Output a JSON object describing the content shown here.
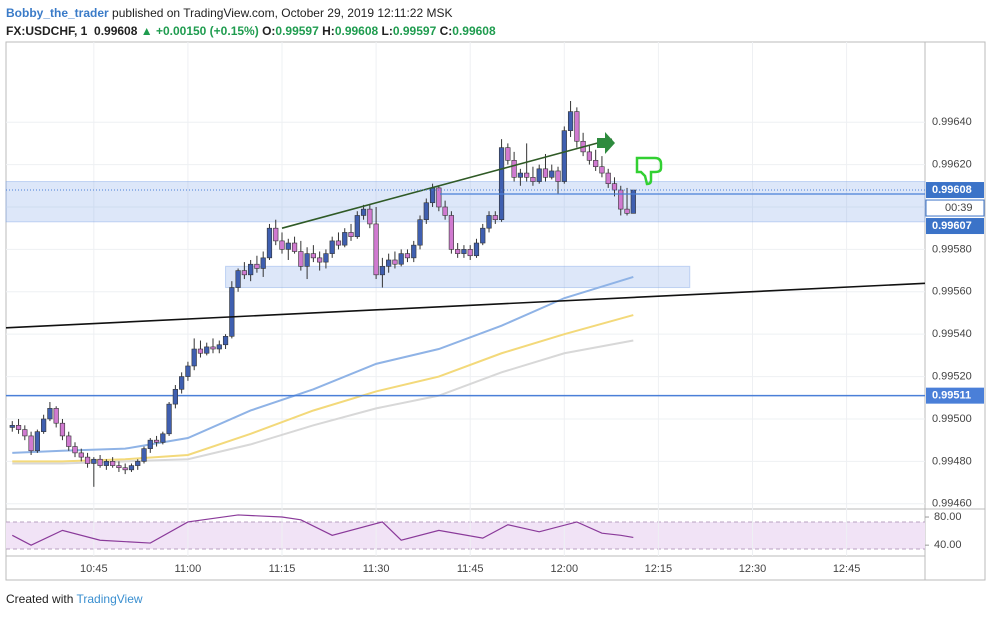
{
  "header": {
    "author": "Bobby_the_trader",
    "published": "published on TradingView.com, October 29, 2019 12:11:22 MSK",
    "symbol": "FX:USDCHF, 1",
    "price": "0.99608",
    "change": "▲ +0.00150 (+0.15%)",
    "o_label": "O:",
    "o": "0.99597",
    "h_label": "H:",
    "h": "0.99608",
    "l_label": "L:",
    "l": "0.99597",
    "c_label": "C:",
    "c": "0.99608"
  },
  "footer": {
    "created": "Created with",
    "brand": "TradingView"
  },
  "chart_data": {
    "type": "candlestick",
    "up_color": "#3f5fb0",
    "down_color": "#d07ad0",
    "x": [
      32,
      33,
      34,
      35,
      36,
      37,
      38,
      39,
      40,
      41,
      42,
      43,
      44,
      45,
      46,
      47,
      48,
      49,
      50,
      51,
      52,
      53,
      54,
      55,
      56,
      57,
      58,
      59,
      60,
      61,
      62,
      63,
      64,
      65,
      66,
      67,
      68,
      69,
      70,
      71,
      72,
      73,
      74,
      75,
      76,
      77,
      78,
      79,
      80,
      81,
      82,
      83,
      84,
      85,
      86,
      87,
      88,
      89,
      90,
      91,
      92,
      93,
      94,
      95,
      96,
      97,
      98,
      99,
      100,
      101,
      102,
      103,
      104,
      105,
      106,
      107,
      108,
      109,
      110,
      111,
      112,
      113,
      114,
      115,
      116,
      117,
      118,
      119,
      120,
      121,
      122,
      123,
      124,
      125,
      126,
      127,
      128,
      129,
      130,
      131
    ],
    "open": [
      0.99496,
      0.99497,
      0.99495,
      0.99492,
      0.99485,
      0.99494,
      0.995,
      0.99505,
      0.99498,
      0.99492,
      0.99487,
      0.99484,
      0.99482,
      0.99479,
      0.99481,
      0.99478,
      0.9948,
      0.99478,
      0.99477,
      0.99476,
      0.99478,
      0.9948,
      0.99486,
      0.9949,
      0.99489,
      0.99493,
      0.99507,
      0.99514,
      0.9952,
      0.99525,
      0.99533,
      0.99531,
      0.99534,
      0.99533,
      0.99535,
      0.99539,
      0.99562,
      0.9957,
      0.99568,
      0.99573,
      0.99571,
      0.99576,
      0.9959,
      0.99584,
      0.9958,
      0.99583,
      0.99579,
      0.99572,
      0.99578,
      0.99576,
      0.99574,
      0.99578,
      0.99584,
      0.99582,
      0.99588,
      0.99586,
      0.99596,
      0.99599,
      0.99592,
      0.99568,
      0.99572,
      0.99575,
      0.99573,
      0.99578,
      0.99576,
      0.99582,
      0.99594,
      0.99602,
      0.99609,
      0.996,
      0.99596,
      0.9958,
      0.99578,
      0.9958,
      0.99577,
      0.99583,
      0.9959,
      0.99596,
      0.99594,
      0.99628,
      0.99622,
      0.99614,
      0.99616,
      0.99614,
      0.99612,
      0.99618,
      0.99614,
      0.99617,
      0.99612,
      0.99636,
      0.99645,
      0.99631,
      0.99626,
      0.99622,
      0.99619,
      0.99616,
      0.99611,
      0.99608,
      0.99599,
      0.99597
    ],
    "high": [
      0.99499,
      0.995,
      0.99497,
      0.99494,
      0.99495,
      0.99502,
      0.99508,
      0.99506,
      0.995,
      0.99494,
      0.99489,
      0.99486,
      0.99484,
      0.99482,
      0.99483,
      0.99481,
      0.99482,
      0.9948,
      0.99479,
      0.99479,
      0.99481,
      0.99487,
      0.99491,
      0.99492,
      0.99494,
      0.99508,
      0.99516,
      0.99522,
      0.99527,
      0.99538,
      0.99537,
      0.99536,
      0.99538,
      0.99537,
      0.9954,
      0.99565,
      0.99571,
      0.99574,
      0.99575,
      0.99577,
      0.99579,
      0.99592,
      0.99594,
      0.99588,
      0.99585,
      0.99586,
      0.99584,
      0.99581,
      0.99582,
      0.99579,
      0.9958,
      0.99586,
      0.99588,
      0.9959,
      0.99592,
      0.99598,
      0.99601,
      0.99601,
      0.996,
      0.99576,
      0.99578,
      0.99579,
      0.9958,
      0.9958,
      0.99584,
      0.99596,
      0.99604,
      0.99611,
      0.9961,
      0.99603,
      0.99598,
      0.99583,
      0.99582,
      0.99582,
      0.99585,
      0.99592,
      0.99598,
      0.99598,
      0.99632,
      0.9963,
      0.99626,
      0.99618,
      0.9963,
      0.99619,
      0.9962,
      0.99625,
      0.9962,
      0.99619,
      0.99638,
      0.9965,
      0.99647,
      0.99635,
      0.99629,
      0.99627,
      0.99624,
      0.99618,
      0.99614,
      0.9961,
      0.99609,
      0.99608
    ],
    "low": [
      0.99494,
      0.99493,
      0.9949,
      0.99483,
      0.99484,
      0.99493,
      0.99499,
      0.99496,
      0.9949,
      0.99485,
      0.99482,
      0.9948,
      0.99477,
      0.99468,
      0.99477,
      0.99476,
      0.99477,
      0.99475,
      0.99474,
      0.99475,
      0.99476,
      0.99479,
      0.99484,
      0.99487,
      0.99488,
      0.99492,
      0.99505,
      0.99512,
      0.99518,
      0.99523,
      0.99529,
      0.9953,
      0.99531,
      0.99531,
      0.99533,
      0.99538,
      0.9956,
      0.99566,
      0.99565,
      0.99569,
      0.99567,
      0.99575,
      0.99582,
      0.99578,
      0.99575,
      0.99578,
      0.9957,
      0.99566,
      0.99574,
      0.9957,
      0.99571,
      0.99576,
      0.9958,
      0.99581,
      0.99584,
      0.99585,
      0.99594,
      0.9959,
      0.99566,
      0.99562,
      0.99569,
      0.99571,
      0.99572,
      0.99574,
      0.99574,
      0.9958,
      0.99592,
      0.996,
      0.99598,
      0.99594,
      0.99578,
      0.99576,
      0.99576,
      0.99575,
      0.99576,
      0.99582,
      0.99588,
      0.99592,
      0.99593,
      0.9962,
      0.99612,
      0.9961,
      0.99612,
      0.9961,
      0.99611,
      0.99612,
      0.99613,
      0.99606,
      0.99611,
      0.99633,
      0.99628,
      0.99624,
      0.9962,
      0.99617,
      0.99614,
      0.99609,
      0.99605,
      0.99596,
      0.99596,
      0.99597
    ],
    "close": [
      0.99497,
      0.99495,
      0.99492,
      0.99485,
      0.99494,
      0.995,
      0.99505,
      0.99498,
      0.99492,
      0.99487,
      0.99484,
      0.99482,
      0.99479,
      0.99481,
      0.99478,
      0.9948,
      0.99478,
      0.99477,
      0.99476,
      0.99478,
      0.9948,
      0.99486,
      0.9949,
      0.99489,
      0.99493,
      0.99507,
      0.99514,
      0.9952,
      0.99525,
      0.99533,
      0.99531,
      0.99534,
      0.99533,
      0.99535,
      0.99539,
      0.99562,
      0.9957,
      0.99568,
      0.99573,
      0.99571,
      0.99576,
      0.9959,
      0.99584,
      0.9958,
      0.99583,
      0.99579,
      0.99572,
      0.99578,
      0.99576,
      0.99574,
      0.99578,
      0.99584,
      0.99582,
      0.99588,
      0.99586,
      0.99596,
      0.99599,
      0.99592,
      0.99568,
      0.99572,
      0.99575,
      0.99573,
      0.99578,
      0.99576,
      0.99582,
      0.99594,
      0.99602,
      0.99609,
      0.996,
      0.99596,
      0.9958,
      0.99578,
      0.9958,
      0.99577,
      0.99583,
      0.9959,
      0.99596,
      0.99594,
      0.99628,
      0.99622,
      0.99614,
      0.99616,
      0.99614,
      0.99612,
      0.99618,
      0.99614,
      0.99617,
      0.99612,
      0.99636,
      0.99645,
      0.99631,
      0.99626,
      0.99622,
      0.99619,
      0.99616,
      0.99611,
      0.99608,
      0.99599,
      0.99597,
      0.99608
    ],
    "xlim": [
      31,
      177.5
    ],
    "xticks": [
      {
        "value": 45,
        "label": "10:45"
      },
      {
        "value": 60,
        "label": "11:00"
      },
      {
        "value": 75,
        "label": "11:15"
      },
      {
        "value": 90,
        "label": "11:30"
      },
      {
        "value": 105,
        "label": "11:45"
      },
      {
        "value": 120,
        "label": "12:00"
      },
      {
        "value": 135,
        "label": "12:15"
      },
      {
        "value": 150,
        "label": "12:30"
      },
      {
        "value": 165,
        "label": "12:45"
      }
    ],
    "ylim": [
      0.99458,
      0.99675
    ],
    "yticks": [
      {
        "value": 0.9946,
        "label": "0.99460"
      },
      {
        "value": 0.9948,
        "label": "0.99480"
      },
      {
        "value": 0.995,
        "label": "0.99500"
      },
      {
        "value": 0.9952,
        "label": "0.99520"
      },
      {
        "value": 0.9954,
        "label": "0.99540"
      },
      {
        "value": 0.9956,
        "label": "0.99560"
      },
      {
        "value": 0.9958,
        "label": "0.99580"
      },
      {
        "value": 0.996,
        "label": "0.99600"
      },
      {
        "value": 0.9962,
        "label": "0.99620"
      },
      {
        "value": 0.9964,
        "label": "0.99640"
      }
    ],
    "grid": true,
    "moving_averages": [
      {
        "color": "#8fb3e6",
        "x": [
          32,
          40,
          50,
          60,
          70,
          80,
          90,
          100,
          110,
          120,
          131
        ],
        "values": [
          0.99484,
          0.99485,
          0.99486,
          0.99491,
          0.99504,
          0.99514,
          0.99526,
          0.99533,
          0.99544,
          0.99557,
          0.99567
        ]
      },
      {
        "color": "#f3d97a",
        "x": [
          32,
          40,
          50,
          60,
          70,
          80,
          90,
          100,
          110,
          120,
          131
        ],
        "values": [
          0.9948,
          0.9948,
          0.99481,
          0.99483,
          0.99493,
          0.99504,
          0.99513,
          0.9952,
          0.99531,
          0.9954,
          0.99549
        ]
      },
      {
        "color": "#d8d8d8",
        "x": [
          32,
          40,
          50,
          60,
          70,
          80,
          90,
          100,
          110,
          120,
          131
        ],
        "values": [
          0.99479,
          0.99479,
          0.9948,
          0.99481,
          0.99488,
          0.99497,
          0.99505,
          0.99511,
          0.99522,
          0.99531,
          0.99537
        ]
      }
    ],
    "trendlines": [
      {
        "color": "#2f5a26",
        "x": [
          75,
          127.6
        ],
        "values": [
          0.9959,
          0.99632
        ]
      },
      {
        "color": "#111111",
        "x": [
          31,
          177.5
        ],
        "values": [
          0.99543,
          0.99564
        ]
      }
    ],
    "zones": [
      {
        "x": [
          31,
          177.5
        ],
        "values": [
          0.99593,
          0.99612
        ]
      },
      {
        "x": [
          66,
          140
        ],
        "values": [
          0.99562,
          0.99572
        ]
      }
    ],
    "hlines": [
      {
        "value": 0.99511,
        "label": "0.99511",
        "color": "#4a7fd8"
      }
    ],
    "price_labels": [
      {
        "value": 0.99608,
        "label": "0.99608"
      },
      {
        "value": 0.99607,
        "label": "0.99607"
      }
    ],
    "countdown": "00:39",
    "rsi": {
      "color": "#8a3a9a",
      "x": [
        32,
        35,
        40,
        46,
        54,
        60,
        68,
        75,
        78,
        83,
        91,
        94,
        100,
        107,
        111,
        116,
        122,
        126,
        129,
        131
      ],
      "values": [
        54,
        40,
        61,
        47,
        43,
        73,
        83,
        80,
        76,
        54,
        73,
        47,
        61,
        50,
        69,
        59,
        73,
        57,
        54,
        51
      ],
      "ylim": [
        26,
        90
      ],
      "yticks": [
        {
          "value": 80,
          "label": "80.00"
        },
        {
          "value": 40,
          "label": "40.00"
        }
      ]
    }
  }
}
